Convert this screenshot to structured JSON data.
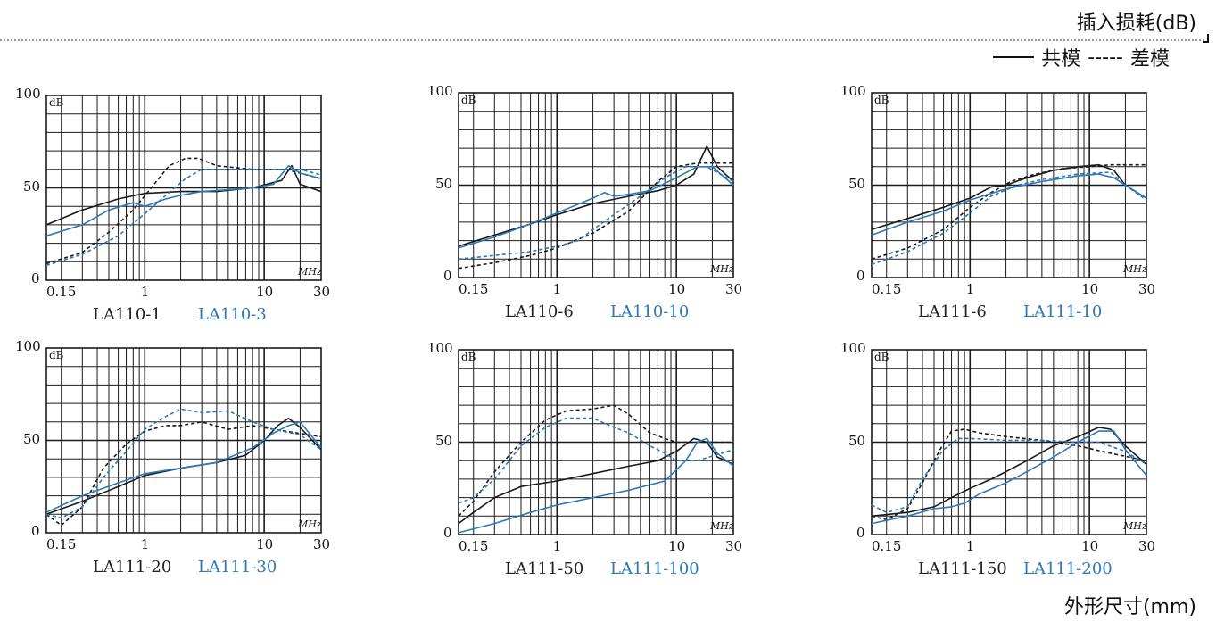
{
  "page": {
    "header_title": "插入损耗(dB)",
    "legend": {
      "solid": "共模",
      "dashed": "差模"
    },
    "footer_title": "外形尺寸(mm)",
    "colors": {
      "grid": "#1a1a1a",
      "black_series": "#1a1a1a",
      "blue_series": "#2e78b8"
    }
  },
  "chart_data": [
    {
      "type": "line",
      "xscale": "log",
      "xlim": [
        0.15,
        30
      ],
      "ylim": [
        0,
        100
      ],
      "xticks": [
        "0.15",
        "1",
        "10",
        "30"
      ],
      "yticks": [
        "0",
        "50",
        "100"
      ],
      "ylabel": "dB",
      "xlabel": "MHz",
      "caption_black": "LA110-1",
      "caption_blue": "LA110-3",
      "series": [
        {
          "color": "black",
          "style": "solid",
          "x": [
            0.15,
            0.3,
            0.6,
            1,
            2,
            4,
            8,
            14,
            17,
            20,
            30
          ],
          "y": [
            30,
            38,
            44,
            47,
            48,
            48,
            50,
            54,
            62,
            52,
            48
          ]
        },
        {
          "color": "black",
          "style": "dashed",
          "x": [
            0.15,
            0.3,
            0.5,
            0.8,
            1.2,
            1.6,
            2.2,
            2.8,
            4,
            8,
            15,
            30
          ],
          "y": [
            9,
            15,
            26,
            38,
            52,
            62,
            66,
            66,
            62,
            60,
            60,
            55
          ]
        },
        {
          "color": "blue",
          "style": "solid",
          "x": [
            0.15,
            0.3,
            0.5,
            0.8,
            1,
            1.5,
            2,
            3,
            5,
            8,
            12,
            16,
            20,
            30
          ],
          "y": [
            24,
            30,
            38,
            42,
            40,
            44,
            46,
            48,
            49,
            50,
            52,
            62,
            58,
            55
          ]
        },
        {
          "color": "blue",
          "style": "dashed",
          "x": [
            0.15,
            0.3,
            0.6,
            1,
            1.5,
            2.2,
            3,
            4,
            6,
            10,
            20,
            30
          ],
          "y": [
            8,
            14,
            24,
            36,
            46,
            55,
            60,
            60,
            60,
            60,
            60,
            57
          ]
        }
      ]
    },
    {
      "type": "line",
      "xscale": "log",
      "xlim": [
        0.15,
        30
      ],
      "ylim": [
        0,
        100
      ],
      "xticks": [
        "0.15",
        "1",
        "10",
        "30"
      ],
      "yticks": [
        "0",
        "50",
        "100"
      ],
      "ylabel": "dB",
      "xlabel": "MHz",
      "caption_black": "LA110-6",
      "caption_blue": "LA110-10",
      "series": [
        {
          "color": "black",
          "style": "solid",
          "x": [
            0.15,
            0.3,
            0.6,
            1,
            2,
            4,
            7,
            10,
            14,
            18,
            22,
            30
          ],
          "y": [
            17,
            23,
            29,
            34,
            40,
            44,
            47,
            50,
            56,
            71,
            60,
            52
          ]
        },
        {
          "color": "black",
          "style": "dashed",
          "x": [
            0.15,
            0.3,
            0.6,
            1,
            2,
            4,
            7,
            10,
            15,
            20,
            30
          ],
          "y": [
            5,
            8,
            12,
            16,
            24,
            36,
            52,
            60,
            62,
            62,
            62
          ]
        },
        {
          "color": "blue",
          "style": "solid",
          "x": [
            0.15,
            0.3,
            0.6,
            1,
            2,
            2.5,
            3,
            4,
            6,
            10,
            15,
            20,
            30
          ],
          "y": [
            16,
            22,
            29,
            35,
            43,
            46,
            44,
            45,
            47,
            54,
            60,
            60,
            50
          ]
        },
        {
          "color": "blue",
          "style": "dashed",
          "x": [
            0.15,
            0.3,
            0.6,
            1,
            1.5,
            2,
            3,
            5,
            8,
            12,
            18,
            30
          ],
          "y": [
            10,
            12,
            14,
            17,
            20,
            26,
            34,
            44,
            54,
            60,
            60,
            52
          ]
        }
      ]
    },
    {
      "type": "line",
      "xscale": "log",
      "xlim": [
        0.15,
        30
      ],
      "ylim": [
        0,
        100
      ],
      "xticks": [
        "0.15",
        "1",
        "10",
        "30"
      ],
      "yticks": [
        "0",
        "50",
        "100"
      ],
      "ylabel": "dB",
      "xlabel": "MHz",
      "caption_black": "LA111-6",
      "caption_blue": "LA111-10",
      "series": [
        {
          "color": "black",
          "style": "solid",
          "x": [
            0.15,
            0.3,
            0.6,
            1,
            1.5,
            2,
            3,
            5,
            8,
            12,
            16,
            20,
            30
          ],
          "y": [
            26,
            32,
            38,
            43,
            49,
            50,
            54,
            58,
            60,
            61,
            58,
            50,
            43
          ]
        },
        {
          "color": "black",
          "style": "dashed",
          "x": [
            0.15,
            0.3,
            0.6,
            1,
            1.5,
            2.2,
            3.5,
            6,
            10,
            15,
            30
          ],
          "y": [
            10,
            16,
            26,
            38,
            46,
            52,
            56,
            59,
            60,
            61,
            61
          ]
        },
        {
          "color": "blue",
          "style": "solid",
          "x": [
            0.15,
            0.3,
            0.6,
            1,
            2,
            4,
            8,
            12,
            16,
            20,
            30
          ],
          "y": [
            23,
            30,
            36,
            42,
            48,
            52,
            55,
            56,
            54,
            50,
            43
          ]
        },
        {
          "color": "blue",
          "style": "dashed",
          "x": [
            0.15,
            0.3,
            0.6,
            1,
            1.5,
            2.5,
            4,
            8,
            15,
            20,
            30
          ],
          "y": [
            7,
            14,
            24,
            35,
            44,
            50,
            53,
            56,
            57,
            50,
            42
          ]
        }
      ]
    },
    {
      "type": "line",
      "xscale": "log",
      "xlim": [
        0.15,
        30
      ],
      "ylim": [
        0,
        100
      ],
      "xticks": [
        "0.15",
        "1",
        "10",
        "30"
      ],
      "yticks": [
        "0",
        "50",
        "100"
      ],
      "ylabel": "dB",
      "xlabel": "MHz",
      "caption_black": "LA111-20",
      "caption_blue": "LA111-30",
      "series": [
        {
          "color": "black",
          "style": "solid",
          "x": [
            0.15,
            0.3,
            0.6,
            1,
            2,
            4,
            7,
            10,
            13,
            16,
            20,
            30
          ],
          "y": [
            10,
            17,
            25,
            31,
            35,
            38,
            42,
            50,
            58,
            62,
            57,
            45
          ]
        },
        {
          "color": "black",
          "style": "dashed",
          "x": [
            0.15,
            0.2,
            0.3,
            0.45,
            0.7,
            1,
            1.5,
            2,
            3,
            5,
            8,
            12,
            30
          ],
          "y": [
            10,
            4,
            14,
            35,
            48,
            55,
            58,
            58,
            60,
            56,
            58,
            56,
            52
          ]
        },
        {
          "color": "blue",
          "style": "solid",
          "x": [
            0.15,
            0.3,
            0.6,
            1,
            2,
            4,
            8,
            12,
            16,
            20,
            30
          ],
          "y": [
            11,
            20,
            27,
            32,
            35,
            38,
            46,
            54,
            58,
            60,
            46
          ]
        },
        {
          "color": "blue",
          "style": "dashed",
          "x": [
            0.15,
            0.2,
            0.3,
            0.45,
            0.7,
            1,
            1.5,
            2,
            3,
            5,
            8,
            12,
            20,
            30
          ],
          "y": [
            10,
            8,
            14,
            30,
            44,
            56,
            63,
            67,
            65,
            66,
            60,
            56,
            53,
            45
          ]
        }
      ]
    },
    {
      "type": "line",
      "xscale": "log",
      "xlim": [
        0.15,
        30
      ],
      "ylim": [
        0,
        100
      ],
      "xticks": [
        "0.15",
        "1",
        "10",
        "30"
      ],
      "yticks": [
        "0",
        "50",
        "100"
      ],
      "ylabel": "dB",
      "xlabel": "MHz",
      "caption_black": "LA111-50",
      "caption_blue": "LA111-100",
      "series": [
        {
          "color": "black",
          "style": "solid",
          "x": [
            0.15,
            0.2,
            0.3,
            0.5,
            1,
            2,
            4,
            7,
            10,
            14,
            18,
            22,
            30
          ],
          "y": [
            6,
            12,
            20,
            26,
            29,
            33,
            37,
            40,
            45,
            52,
            50,
            42,
            38
          ]
        },
        {
          "color": "black",
          "style": "dashed",
          "x": [
            0.15,
            0.2,
            0.3,
            0.5,
            0.8,
            1.2,
            2,
            3,
            4,
            6,
            8,
            10,
            15,
            30
          ],
          "y": [
            10,
            18,
            34,
            50,
            62,
            67,
            68,
            70,
            65,
            55,
            52,
            50,
            50,
            50
          ]
        },
        {
          "color": "blue",
          "style": "solid",
          "x": [
            0.15,
            0.3,
            0.6,
            1,
            2,
            4,
            8,
            12,
            15,
            18,
            22,
            30
          ],
          "y": [
            1,
            6,
            12,
            16,
            20,
            24,
            29,
            40,
            50,
            52,
            44,
            37
          ]
        },
        {
          "color": "blue",
          "style": "dashed",
          "x": [
            0.15,
            0.2,
            0.3,
            0.5,
            0.8,
            1.2,
            2,
            3,
            4,
            6,
            8,
            10,
            15,
            30
          ],
          "y": [
            17,
            20,
            30,
            48,
            58,
            63,
            63,
            58,
            55,
            48,
            44,
            40,
            40,
            46
          ]
        }
      ]
    },
    {
      "type": "line",
      "xscale": "log",
      "xlim": [
        0.15,
        30
      ],
      "ylim": [
        0,
        100
      ],
      "xticks": [
        "0.15",
        "1",
        "10",
        "30"
      ],
      "yticks": [
        "0",
        "50",
        "100"
      ],
      "ylabel": "dB",
      "xlabel": "MHz",
      "caption_black": "LA111-150",
      "caption_blue": "LA111-200",
      "series": [
        {
          "color": "black",
          "style": "solid",
          "x": [
            0.15,
            0.3,
            0.5,
            0.7,
            1,
            1.5,
            2,
            3,
            5,
            8,
            12,
            15,
            20,
            30
          ],
          "y": [
            10,
            12,
            15,
            20,
            25,
            30,
            34,
            40,
            48,
            53,
            58,
            57,
            48,
            38
          ]
        },
        {
          "color": "black",
          "style": "dashed",
          "x": [
            0.15,
            0.2,
            0.3,
            0.4,
            0.55,
            0.7,
            0.9,
            1.2,
            2,
            4,
            8,
            15,
            30
          ],
          "y": [
            10,
            8,
            14,
            28,
            45,
            56,
            57,
            55,
            53,
            51,
            48,
            44,
            40
          ]
        },
        {
          "color": "blue",
          "style": "solid",
          "x": [
            0.15,
            0.3,
            0.5,
            0.7,
            0.9,
            1.2,
            2,
            3,
            5,
            8,
            12,
            16,
            20,
            30
          ],
          "y": [
            6,
            10,
            14,
            15,
            17,
            22,
            28,
            34,
            42,
            50,
            56,
            56,
            46,
            32
          ]
        },
        {
          "color": "blue",
          "style": "dashed",
          "x": [
            0.15,
            0.2,
            0.3,
            0.4,
            0.6,
            0.8,
            1,
            2,
            4,
            8,
            12,
            20,
            30
          ],
          "y": [
            16,
            12,
            15,
            30,
            46,
            52,
            52,
            51,
            51,
            50,
            50,
            45,
            38
          ]
        }
      ]
    }
  ]
}
